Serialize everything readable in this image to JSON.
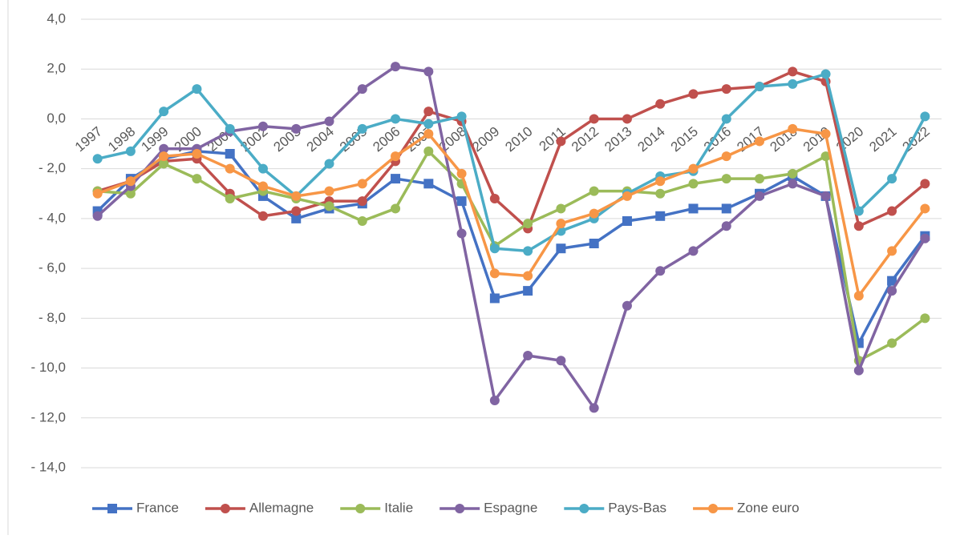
{
  "chart_data": {
    "type": "line",
    "categories": [
      "1997",
      "1998",
      "1999",
      "2000",
      "2001",
      "2002",
      "2003",
      "2004",
      "2005",
      "2006",
      "2007",
      "2008",
      "2009",
      "2010",
      "2011",
      "2012",
      "2013",
      "2014",
      "2015",
      "2016",
      "2017",
      "2018",
      "2019",
      "2020",
      "2021",
      "2022"
    ],
    "series": [
      {
        "name": "France",
        "color": "#4472c4",
        "marker": "square",
        "values": [
          -3.7,
          -2.4,
          -1.6,
          -1.3,
          -1.4,
          -3.1,
          -4.0,
          -3.6,
          -3.4,
          -2.4,
          -2.6,
          -3.3,
          -7.2,
          -6.9,
          -5.2,
          -5.0,
          -4.1,
          -3.9,
          -3.6,
          -3.6,
          -3.0,
          -2.3,
          -3.1,
          -9.0,
          -6.5,
          -4.7
        ]
      },
      {
        "name": "Allemagne",
        "color": "#c0504d",
        "marker": "circle",
        "values": [
          -2.9,
          -2.5,
          -1.7,
          -1.6,
          -3.0,
          -3.9,
          -3.7,
          -3.3,
          -3.3,
          -1.7,
          0.3,
          -0.1,
          -3.2,
          -4.4,
          -0.9,
          0.0,
          0.0,
          0.6,
          1.0,
          1.2,
          1.3,
          1.9,
          1.5,
          -4.3,
          -3.7,
          -2.6
        ]
      },
      {
        "name": "Italie",
        "color": "#9bbb59",
        "marker": "circle",
        "values": [
          -2.9,
          -3.0,
          -1.8,
          -2.4,
          -3.2,
          -2.9,
          -3.2,
          -3.5,
          -4.1,
          -3.6,
          -1.3,
          -2.6,
          -5.1,
          -4.2,
          -3.6,
          -2.9,
          -2.9,
          -3.0,
          -2.6,
          -2.4,
          -2.4,
          -2.2,
          -1.5,
          -9.7,
          -9.0,
          -8.0
        ]
      },
      {
        "name": "Espagne",
        "color": "#8064a2",
        "marker": "circle",
        "values": [
          -3.9,
          -2.7,
          -1.2,
          -1.2,
          -0.5,
          -0.3,
          -0.4,
          -0.1,
          1.2,
          2.1,
          1.9,
          -4.6,
          -11.3,
          -9.5,
          -9.7,
          -11.6,
          -7.5,
          -6.1,
          -5.3,
          -4.3,
          -3.1,
          -2.6,
          -3.1,
          -10.1,
          -6.9,
          -4.8
        ]
      },
      {
        "name": "Pays-Bas",
        "color": "#4bacc6",
        "marker": "circle",
        "values": [
          -1.6,
          -1.3,
          0.3,
          1.2,
          -0.4,
          -2.0,
          -3.1,
          -1.8,
          -0.4,
          0.0,
          -0.2,
          0.1,
          -5.2,
          -5.3,
          -4.5,
          -4.0,
          -3.0,
          -2.3,
          -2.1,
          0.0,
          1.3,
          1.4,
          1.8,
          -3.7,
          -2.4,
          0.1
        ]
      },
      {
        "name": "Zone euro",
        "color": "#f79646",
        "marker": "circle",
        "values": [
          -3.0,
          -2.5,
          -1.5,
          -1.4,
          -2.0,
          -2.7,
          -3.1,
          -2.9,
          -2.6,
          -1.5,
          -0.6,
          -2.2,
          -6.2,
          -6.3,
          -4.2,
          -3.8,
          -3.1,
          -2.5,
          -2.0,
          -1.5,
          -0.9,
          -0.4,
          -0.6,
          -7.1,
          -5.3,
          -3.6
        ]
      }
    ],
    "ylim": [
      -14,
      4
    ],
    "yticks": [
      {
        "value": -14,
        "label": "- 14,0"
      },
      {
        "value": -12,
        "label": "- 12,0"
      },
      {
        "value": -10,
        "label": "- 10,0"
      },
      {
        "value": -8,
        "label": "- 8,0"
      },
      {
        "value": -6,
        "label": "- 6,0"
      },
      {
        "value": -4,
        "label": "- 4,0"
      },
      {
        "value": -2,
        "label": "- 2,0"
      },
      {
        "value": 0,
        "label": "0,0"
      },
      {
        "value": 2,
        "label": "2,0"
      },
      {
        "value": 4,
        "label": "4,0"
      }
    ],
    "grid": true,
    "legend": "bottom"
  }
}
